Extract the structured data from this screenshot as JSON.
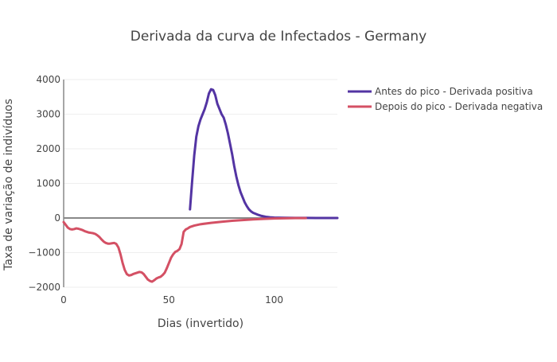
{
  "chart_data": {
    "type": "line",
    "title": "Derivada da curva de Infectados - Germany",
    "xlabel": "Dias (invertido)",
    "ylabel": "Taxa de variação de indivíduos",
    "xlim": [
      0,
      130
    ],
    "ylim": [
      -2000,
      4000
    ],
    "x_ticks": [
      0,
      50,
      100
    ],
    "x_tick_labels": [
      "0",
      "50",
      "100"
    ],
    "y_ticks": [
      -2000,
      -1000,
      0,
      1000,
      2000,
      3000,
      4000
    ],
    "y_tick_labels": [
      "−2000",
      "−1000",
      "0",
      "1000",
      "2000",
      "3000",
      "4000"
    ],
    "grid": true,
    "legend_position": "top-right",
    "series": [
      {
        "name": "Antes do pico - Derivada positiva",
        "color": "#5334a3",
        "x": [
          60,
          61,
          62,
          63,
          64,
          65,
          66,
          67,
          68,
          69,
          70,
          71,
          72,
          73,
          74,
          75,
          76,
          77,
          78,
          79,
          80,
          81,
          82,
          83,
          84,
          85,
          86,
          87,
          88,
          89,
          90,
          92,
          94,
          96,
          98,
          100,
          102,
          105,
          110,
          115,
          120,
          125,
          130
        ],
        "y": [
          250,
          1050,
          1800,
          2350,
          2650,
          2850,
          3000,
          3150,
          3350,
          3600,
          3720,
          3700,
          3550,
          3300,
          3150,
          3000,
          2900,
          2700,
          2450,
          2150,
          1850,
          1500,
          1200,
          950,
          750,
          600,
          450,
          340,
          250,
          190,
          150,
          100,
          60,
          35,
          20,
          12,
          8,
          5,
          3,
          2,
          1,
          0,
          0
        ]
      },
      {
        "name": "Depois do pico - Derivada negativa",
        "color": "#d45064",
        "x": [
          0,
          1,
          2,
          3,
          4,
          5,
          6,
          7,
          8,
          9,
          10,
          11,
          12,
          13,
          14,
          15,
          16,
          17,
          18,
          19,
          20,
          21,
          22,
          23,
          24,
          25,
          26,
          27,
          28,
          29,
          30,
          31,
          32,
          33,
          34,
          35,
          36,
          37,
          38,
          39,
          40,
          41,
          42,
          43,
          44,
          45,
          46,
          47,
          48,
          49,
          50,
          51,
          52,
          53,
          54,
          55,
          56,
          57,
          58,
          59,
          60,
          62,
          65,
          70,
          75,
          80,
          85,
          90,
          95,
          100,
          105,
          110,
          115
        ],
        "y": [
          -120,
          -200,
          -280,
          -320,
          -330,
          -320,
          -300,
          -310,
          -330,
          -350,
          -380,
          -400,
          -420,
          -430,
          -440,
          -460,
          -500,
          -550,
          -620,
          -680,
          -720,
          -740,
          -740,
          -730,
          -720,
          -750,
          -850,
          -1050,
          -1300,
          -1500,
          -1620,
          -1660,
          -1650,
          -1620,
          -1600,
          -1580,
          -1560,
          -1570,
          -1620,
          -1700,
          -1780,
          -1820,
          -1840,
          -1800,
          -1750,
          -1720,
          -1700,
          -1650,
          -1580,
          -1450,
          -1300,
          -1150,
          -1050,
          -980,
          -950,
          -900,
          -750,
          -400,
          -330,
          -300,
          -260,
          -220,
          -180,
          -140,
          -110,
          -80,
          -60,
          -40,
          -25,
          -15,
          -8,
          -4,
          -2
        ]
      }
    ]
  }
}
